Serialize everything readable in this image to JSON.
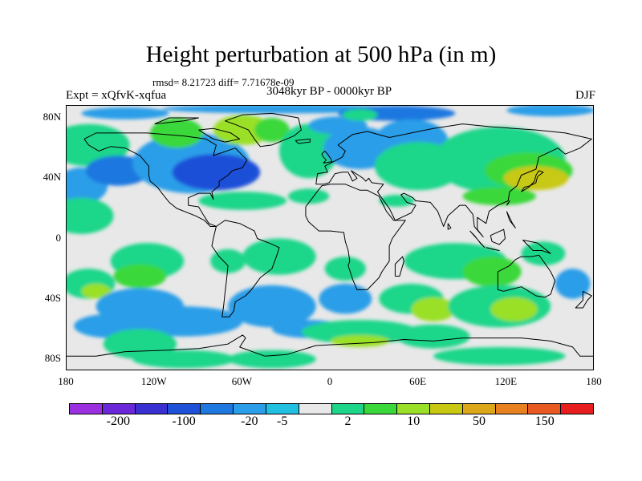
{
  "title": "Height perturbation at 500 hPa (in m)",
  "stats": "rmsd= 8.21723 diff= 7.71678e-09",
  "experiment": "Expt = xQfvK-xqfua",
  "period": "3048kyr BP - 0000kyr BP",
  "season": "DJF",
  "map": {
    "background_color": "#e8e8e8",
    "coastline_color": "#000000",
    "lat_labels": [
      "80N",
      "40N",
      "0",
      "40S",
      "80S"
    ],
    "lon_labels": [
      "180",
      "120W",
      "60W",
      "0",
      "60E",
      "120E",
      "180"
    ]
  },
  "colorbar": {
    "colors": [
      "#9b30e0",
      "#6a28d8",
      "#3a2fd0",
      "#1f50d8",
      "#1e78e0",
      "#2a9ee8",
      "#22c0e0",
      "#e8e8e8",
      "#1ed68a",
      "#3ad83a",
      "#9ae028",
      "#c8c812",
      "#dca81a",
      "#e88220",
      "#e85a22",
      "#e81e1e"
    ],
    "labels": [
      "-200",
      "-100",
      "-20",
      "-5",
      "2",
      "10",
      "50",
      "150"
    ]
  }
}
